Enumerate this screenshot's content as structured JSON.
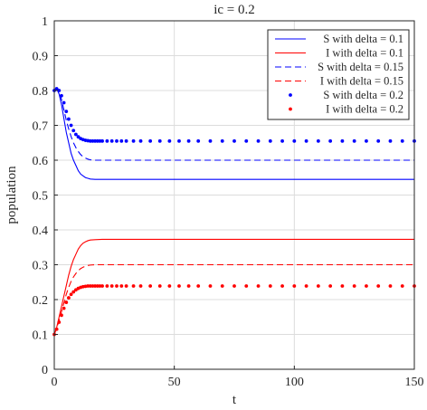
{
  "chart_data": {
    "type": "line",
    "title": "ic = 0.2",
    "xlabel": "t",
    "ylabel": "population",
    "xlim": [
      0,
      150
    ],
    "ylim": [
      0,
      1
    ],
    "xticks": [
      0,
      50,
      100,
      150
    ],
    "xtick_labels": [
      "0",
      "50",
      "100",
      "150"
    ],
    "yticks": [
      0,
      0.1,
      0.2,
      0.3,
      0.4,
      0.5,
      0.6,
      0.7,
      0.8,
      0.9,
      1
    ],
    "ytick_labels": [
      "0",
      "0.1",
      "0.2",
      "0.3",
      "0.4",
      "0.5",
      "0.6",
      "0.7",
      "0.8",
      "0.9",
      "1"
    ],
    "grid": true,
    "legend_position": "top-right",
    "series": [
      {
        "name": "S with delta = 0.1",
        "color": "#0000ff",
        "style": "solid",
        "x": [
          0,
          1,
          2,
          3,
          4,
          5,
          6,
          7,
          8,
          9,
          10,
          11,
          12,
          13,
          14,
          15,
          17,
          20,
          25,
          30,
          40,
          60,
          80,
          100,
          120,
          150
        ],
        "y": [
          0.8,
          0.805,
          0.79,
          0.76,
          0.72,
          0.68,
          0.65,
          0.62,
          0.6,
          0.585,
          0.57,
          0.56,
          0.555,
          0.55,
          0.548,
          0.546,
          0.545,
          0.545,
          0.545,
          0.545,
          0.545,
          0.545,
          0.545,
          0.545,
          0.545,
          0.545
        ]
      },
      {
        "name": "I with delta = 0.1",
        "color": "#ff0000",
        "style": "solid",
        "x": [
          0,
          1,
          2,
          3,
          4,
          5,
          6,
          7,
          8,
          9,
          10,
          11,
          12,
          13,
          14,
          15,
          17,
          20,
          25,
          30,
          40,
          60,
          80,
          100,
          120,
          150
        ],
        "y": [
          0.1,
          0.12,
          0.15,
          0.18,
          0.21,
          0.24,
          0.27,
          0.295,
          0.315,
          0.33,
          0.345,
          0.355,
          0.362,
          0.366,
          0.369,
          0.371,
          0.372,
          0.373,
          0.373,
          0.373,
          0.373,
          0.373,
          0.373,
          0.373,
          0.373,
          0.373
        ]
      },
      {
        "name": "S with delta = 0.15",
        "color": "#0000ff",
        "style": "dashed",
        "x": [
          0,
          1,
          2,
          3,
          4,
          5,
          6,
          7,
          8,
          9,
          10,
          11,
          12,
          13,
          14,
          15,
          17,
          20,
          25,
          30,
          40,
          60,
          80,
          100,
          120,
          150
        ],
        "y": [
          0.8,
          0.805,
          0.795,
          0.775,
          0.745,
          0.715,
          0.69,
          0.668,
          0.65,
          0.636,
          0.625,
          0.616,
          0.61,
          0.606,
          0.603,
          0.601,
          0.6,
          0.6,
          0.6,
          0.6,
          0.6,
          0.6,
          0.6,
          0.6,
          0.6,
          0.6
        ]
      },
      {
        "name": "I with delta = 0.15",
        "color": "#ff0000",
        "style": "dashed",
        "x": [
          0,
          1,
          2,
          3,
          4,
          5,
          6,
          7,
          8,
          9,
          10,
          11,
          12,
          13,
          14,
          15,
          17,
          20,
          25,
          30,
          40,
          60,
          80,
          100,
          120,
          150
        ],
        "y": [
          0.1,
          0.118,
          0.14,
          0.165,
          0.19,
          0.215,
          0.235,
          0.252,
          0.265,
          0.275,
          0.283,
          0.289,
          0.293,
          0.296,
          0.298,
          0.299,
          0.3,
          0.3,
          0.3,
          0.3,
          0.3,
          0.3,
          0.3,
          0.3,
          0.3,
          0.3
        ]
      },
      {
        "name": "S with delta = 0.2",
        "color": "#0000ff",
        "style": "dotted",
        "x": [
          0,
          1,
          2,
          3,
          4,
          5,
          6,
          7,
          8,
          9,
          10,
          11,
          12,
          13,
          14,
          15,
          16,
          17,
          18,
          19,
          20,
          22,
          24,
          26,
          28,
          30,
          33,
          36,
          40,
          44,
          48,
          52,
          56,
          60,
          65,
          70,
          75,
          80,
          85,
          90,
          95,
          100,
          105,
          110,
          115,
          120,
          125,
          130,
          135,
          140,
          145,
          150
        ],
        "y": [
          0.8,
          0.805,
          0.8,
          0.785,
          0.765,
          0.74,
          0.718,
          0.7,
          0.685,
          0.674,
          0.667,
          0.662,
          0.659,
          0.657,
          0.656,
          0.655,
          0.655,
          0.655,
          0.655,
          0.655,
          0.655,
          0.655,
          0.655,
          0.655,
          0.655,
          0.655,
          0.655,
          0.655,
          0.655,
          0.655,
          0.655,
          0.655,
          0.655,
          0.655,
          0.655,
          0.655,
          0.655,
          0.655,
          0.655,
          0.655,
          0.655,
          0.655,
          0.655,
          0.655,
          0.655,
          0.655,
          0.655,
          0.655,
          0.655,
          0.655,
          0.655,
          0.655
        ]
      },
      {
        "name": "I with delta = 0.2",
        "color": "#ff0000",
        "style": "dotted",
        "x": [
          0,
          1,
          2,
          3,
          4,
          5,
          6,
          7,
          8,
          9,
          10,
          11,
          12,
          13,
          14,
          15,
          16,
          17,
          18,
          19,
          20,
          22,
          24,
          26,
          28,
          30,
          33,
          36,
          40,
          44,
          48,
          52,
          56,
          60,
          65,
          70,
          75,
          80,
          85,
          90,
          95,
          100,
          105,
          110,
          115,
          120,
          125,
          130,
          135,
          140,
          145,
          150
        ],
        "y": [
          0.1,
          0.115,
          0.135,
          0.155,
          0.175,
          0.192,
          0.205,
          0.215,
          0.222,
          0.228,
          0.232,
          0.235,
          0.237,
          0.238,
          0.239,
          0.239,
          0.239,
          0.239,
          0.239,
          0.239,
          0.239,
          0.239,
          0.239,
          0.239,
          0.239,
          0.239,
          0.239,
          0.239,
          0.239,
          0.239,
          0.239,
          0.239,
          0.239,
          0.239,
          0.239,
          0.239,
          0.239,
          0.239,
          0.239,
          0.239,
          0.239,
          0.239,
          0.239,
          0.239,
          0.239,
          0.239,
          0.239,
          0.239,
          0.239,
          0.239,
          0.239,
          0.239
        ]
      }
    ]
  }
}
